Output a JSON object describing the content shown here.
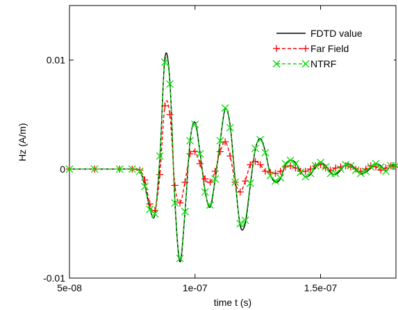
{
  "chart_data": {
    "type": "line",
    "title": "",
    "xlabel": "time t (s)",
    "ylabel": "Hz (A/m)",
    "xlim": [
      5e-08,
      1.8e-07
    ],
    "ylim": [
      -0.01,
      0.015
    ],
    "xticks": [
      {
        "value": 5e-08,
        "label": "5e-08"
      },
      {
        "value": 1e-07,
        "label": "1e-07"
      },
      {
        "value": 1.5e-07,
        "label": "1.5e-07"
      }
    ],
    "yticks": [
      {
        "value": -0.01,
        "label": "-0.01"
      },
      {
        "value": 0,
        "label": "0"
      },
      {
        "value": 0.01,
        "label": "0.01"
      }
    ],
    "grid": false,
    "legend_position": "top-right",
    "series": [
      {
        "name": "FDTD value",
        "color": "#000000",
        "style": "solid",
        "marker": "none",
        "x": [
          5e-08,
          6e-08,
          7e-08,
          7.5e-08,
          7.8e-08,
          8e-08,
          8.2e-08,
          8.4e-08,
          8.6e-08,
          8.8e-08,
          9e-08,
          9.2e-08,
          9.4e-08,
          9.6e-08,
          9.8e-08,
          1e-07,
          1.02e-07,
          1.04e-07,
          1.06e-07,
          1.08e-07,
          1.1e-07,
          1.12e-07,
          1.14e-07,
          1.16e-07,
          1.18e-07,
          1.2e-07,
          1.22e-07,
          1.24e-07,
          1.26e-07,
          1.28e-07,
          1.3e-07,
          1.32e-07,
          1.34e-07,
          1.36e-07,
          1.38e-07,
          1.4e-07,
          1.42e-07,
          1.44e-07,
          1.46e-07,
          1.48e-07,
          1.5e-07,
          1.52e-07,
          1.54e-07,
          1.56e-07,
          1.58e-07,
          1.6e-07,
          1.62e-07,
          1.64e-07,
          1.66e-07,
          1.68e-07,
          1.7e-07,
          1.72e-07,
          1.74e-07,
          1.76e-07,
          1.78e-07,
          1.8e-07
        ],
        "y": [
          0,
          0,
          0,
          0,
          -0.0002,
          -0.0015,
          -0.0036,
          -0.0042,
          0.001,
          0.0102,
          0.008,
          -0.003,
          -0.0085,
          -0.004,
          0.0025,
          0.0043,
          0.0015,
          -0.002,
          -0.0035,
          -0.001,
          0.0025,
          0.0055,
          0.004,
          -0.001,
          -0.0052,
          -0.005,
          -0.0015,
          0.0018,
          0.0028,
          0.0016,
          -0.0005,
          -0.0012,
          -0.0009,
          0.0004,
          0.0008,
          0.0006,
          -0.0002,
          -0.0007,
          -0.0005,
          0.0002,
          0.0006,
          0.0003,
          -0.0003,
          -0.0005,
          -0.0001,
          0.0004,
          0.0004,
          0,
          -0.0004,
          -0.0003,
          0.0001,
          0.0005,
          0.0003,
          -0.0002,
          0.0003,
          0.0004
        ]
      },
      {
        "name": "Far Field",
        "color": "#ff0000",
        "style": "dashed",
        "marker": "plus",
        "x": [
          5e-08,
          6e-08,
          7e-08,
          7.5e-08,
          7.8e-08,
          8e-08,
          8.2e-08,
          8.4e-08,
          8.6e-08,
          8.8e-08,
          9e-08,
          9.2e-08,
          9.4e-08,
          9.6e-08,
          9.8e-08,
          1e-07,
          1.02e-07,
          1.04e-07,
          1.06e-07,
          1.08e-07,
          1.1e-07,
          1.12e-07,
          1.14e-07,
          1.16e-07,
          1.18e-07,
          1.2e-07,
          1.22e-07,
          1.24e-07,
          1.26e-07,
          1.28e-07,
          1.3e-07,
          1.32e-07,
          1.34e-07,
          1.36e-07,
          1.38e-07,
          1.4e-07,
          1.42e-07,
          1.44e-07,
          1.46e-07,
          1.48e-07,
          1.5e-07,
          1.52e-07,
          1.54e-07,
          1.56e-07,
          1.58e-07,
          1.6e-07,
          1.62e-07,
          1.64e-07,
          1.66e-07,
          1.68e-07,
          1.7e-07,
          1.72e-07,
          1.74e-07,
          1.76e-07,
          1.78e-07,
          1.8e-07
        ],
        "y": [
          0,
          0,
          0,
          0,
          -0.0001,
          -0.001,
          -0.0032,
          -0.0038,
          -0.0005,
          0.0058,
          0.005,
          -0.0015,
          -0.0031,
          -0.0012,
          0.0014,
          0.0016,
          0.0005,
          -0.0009,
          -0.0012,
          -0.0002,
          0.0016,
          0.0025,
          0.0012,
          -0.0012,
          -0.0021,
          -0.0011,
          0.0004,
          0.0007,
          0.0004,
          -0.0002,
          -0.0003,
          -0.0004,
          -0.0002,
          0.0002,
          0.0003,
          0.0001,
          -0.0002,
          -0.0002,
          0,
          0.0003,
          0.0004,
          0.0001,
          -0.0001,
          0.0001,
          0.0002,
          0.0003,
          0.0002,
          0,
          -0.0002,
          0,
          0.0003,
          0.0002,
          -0.0001,
          0.0001,
          0.0003,
          0.0002
        ]
      },
      {
        "name": "NTRF",
        "color": "#00dd00",
        "style": "dashed",
        "marker": "cross",
        "x": [
          5e-08,
          6e-08,
          7e-08,
          7.5e-08,
          7.8e-08,
          8e-08,
          8.2e-08,
          8.4e-08,
          8.6e-08,
          8.8e-08,
          9e-08,
          9.2e-08,
          9.4e-08,
          9.6e-08,
          9.8e-08,
          1e-07,
          1.02e-07,
          1.04e-07,
          1.06e-07,
          1.08e-07,
          1.1e-07,
          1.12e-07,
          1.14e-07,
          1.16e-07,
          1.18e-07,
          1.2e-07,
          1.22e-07,
          1.24e-07,
          1.26e-07,
          1.28e-07,
          1.3e-07,
          1.32e-07,
          1.34e-07,
          1.36e-07,
          1.38e-07,
          1.4e-07,
          1.42e-07,
          1.44e-07,
          1.46e-07,
          1.48e-07,
          1.5e-07,
          1.52e-07,
          1.54e-07,
          1.56e-07,
          1.58e-07,
          1.6e-07,
          1.62e-07,
          1.64e-07,
          1.66e-07,
          1.68e-07,
          1.7e-07,
          1.72e-07,
          1.74e-07,
          1.76e-07,
          1.78e-07,
          1.8e-07
        ],
        "y": [
          0,
          0,
          0,
          0,
          -0.0002,
          -0.0016,
          -0.0037,
          -0.0041,
          0.0012,
          0.0098,
          0.0078,
          -0.0031,
          -0.0082,
          -0.0039,
          0.0026,
          0.0041,
          0.0014,
          -0.0021,
          -0.0033,
          -0.0009,
          0.0026,
          0.0056,
          0.0038,
          -0.0012,
          -0.005,
          -0.0047,
          -0.0013,
          0.0019,
          0.0027,
          0.0015,
          -0.0006,
          -0.0011,
          -0.0008,
          0.0005,
          0.0008,
          0.0005,
          -0.0003,
          -0.0007,
          -0.0004,
          0.0003,
          0.0006,
          0.0002,
          -0.0004,
          -0.0004,
          0,
          0.0004,
          0.0003,
          -0.0001,
          -0.0004,
          -0.0002,
          0.0002,
          0.0005,
          0.0002,
          -0.0002,
          0.0003,
          0.0003
        ]
      }
    ]
  }
}
